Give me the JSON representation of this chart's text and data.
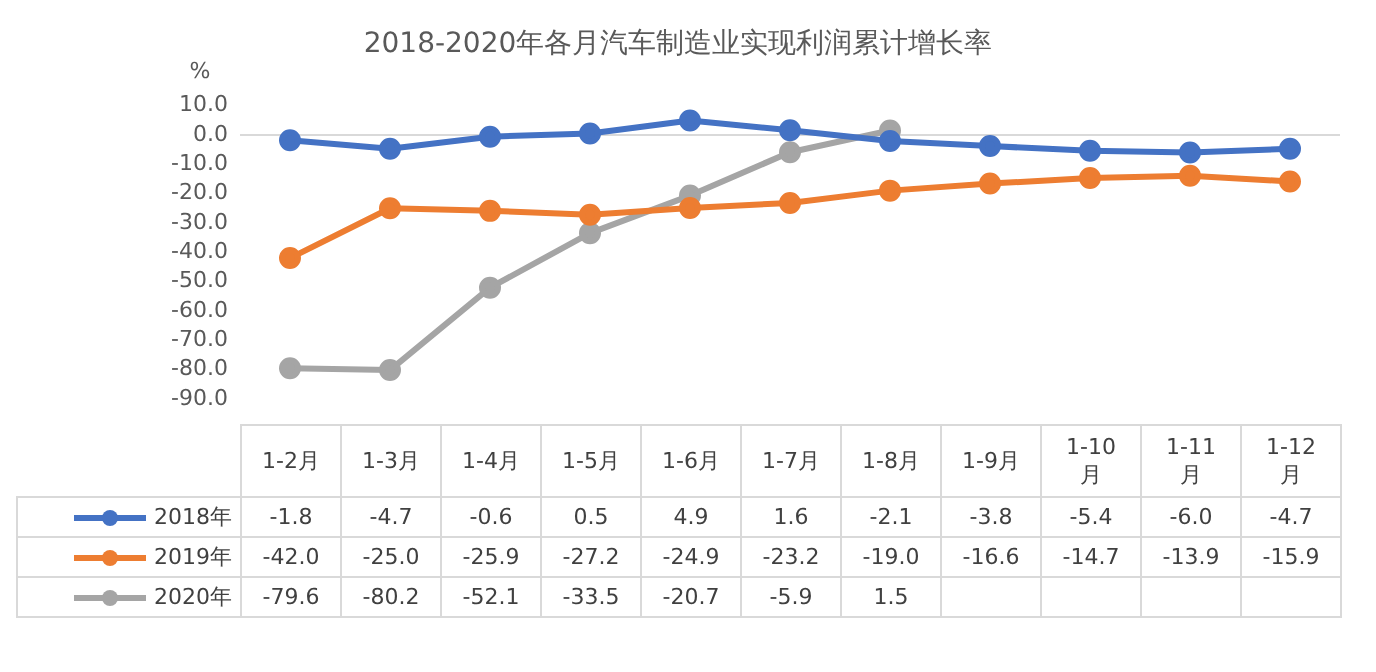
{
  "chart_data": {
    "type": "line",
    "title": "2018-2020年各月汽车制造业实现利润累计增长率",
    "ylabel": "%",
    "categories": [
      "1-2月",
      "1-3月",
      "1-4月",
      "1-5月",
      "1-6月",
      "1-7月",
      "1-8月",
      "1-9月",
      "1-10月",
      "1-11月",
      "1-12月"
    ],
    "series": [
      {
        "name": "2018年",
        "color": "#4472c4",
        "values": [
          -1.8,
          -4.7,
          -0.6,
          0.5,
          4.9,
          1.6,
          -2.1,
          -3.8,
          -5.4,
          -6.0,
          -4.7
        ],
        "value_labels": [
          "-1.8",
          "-4.7",
          "-0.6",
          "0.5",
          "4.9",
          "1.6",
          "-2.1",
          "-3.8",
          "-5.4",
          "-6.0",
          "-4.7"
        ]
      },
      {
        "name": "2019年",
        "color": "#ed7d31",
        "values": [
          -42.0,
          -25.0,
          -25.9,
          -27.2,
          -24.9,
          -23.2,
          -19.0,
          -16.6,
          -14.7,
          -13.9,
          -15.9
        ],
        "value_labels": [
          "-42.0",
          "-25.0",
          "-25.9",
          "-27.2",
          "-24.9",
          "-23.2",
          "-19.0",
          "-16.6",
          "-14.7",
          "-13.9",
          "-15.9"
        ]
      },
      {
        "name": "2020年",
        "color": "#a5a5a5",
        "values": [
          -79.6,
          -80.2,
          -52.1,
          -33.5,
          -20.7,
          -5.9,
          1.5,
          null,
          null,
          null,
          null
        ],
        "value_labels": [
          "-79.6",
          "-80.2",
          "-52.1",
          "-33.5",
          "-20.7",
          "-5.9",
          "1.5",
          null,
          null,
          null,
          null
        ]
      }
    ],
    "ylim": [
      -90,
      10
    ],
    "yticks": [
      {
        "value": -90,
        "label": "-90.0"
      },
      {
        "value": -80,
        "label": "-80.0"
      },
      {
        "value": -70,
        "label": "-70.0"
      },
      {
        "value": -60,
        "label": "-60.0"
      },
      {
        "value": -50,
        "label": "-50.0"
      },
      {
        "value": -40,
        "label": "-40.0"
      },
      {
        "value": -30,
        "label": "-30.0"
      },
      {
        "value": -20,
        "label": "-20.0"
      },
      {
        "value": -10,
        "label": "-10.0"
      },
      {
        "value": 0,
        "label": "0.0"
      },
      {
        "value": 10,
        "label": "10.0"
      }
    ],
    "ref_lines": [
      {
        "axis": "y",
        "value": 0,
        "color": "#d9d9d9"
      }
    ],
    "grid": false,
    "legend": "bottom",
    "marker": "circle",
    "line_style": "solid"
  }
}
